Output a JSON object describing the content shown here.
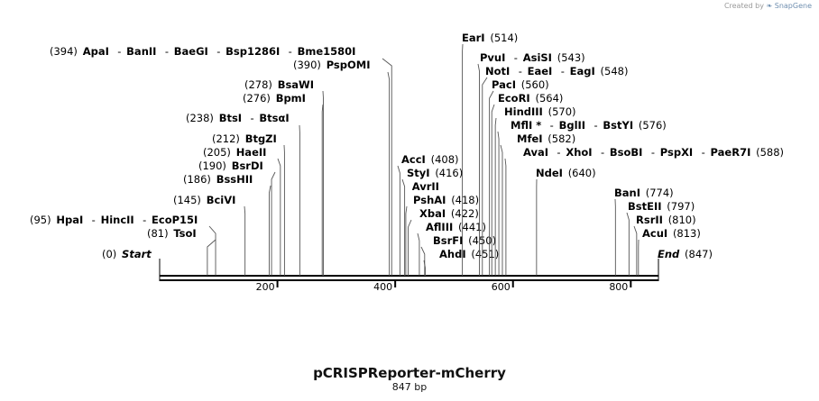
{
  "credit": {
    "prefix": "Created by",
    "brand_icon": "snapgene-swirl-icon",
    "brand": "SnapGene"
  },
  "map": {
    "title": "pCRISPReporter-mCherry",
    "length_label": "847 bp",
    "length": 847,
    "ticks": [
      "200",
      "400",
      "600",
      "800"
    ],
    "tick_positions": [
      200,
      400,
      600,
      800
    ],
    "line_color": "#000000",
    "text_color": "#000000"
  },
  "labels": [
    {
      "pos": "(394)",
      "names": [
        "ApaI",
        "BanII",
        "BaeGI",
        "Bsp1286I",
        "Bme1580I"
      ]
    },
    {
      "pos": "(390)",
      "names": [
        "PspOMI"
      ]
    },
    {
      "pos": "(278)",
      "names": [
        "BsaWI"
      ]
    },
    {
      "pos": "(276)",
      "names": [
        "BpmI"
      ]
    },
    {
      "pos": "(238)",
      "names": [
        "BtsI",
        "BtsαI"
      ]
    },
    {
      "pos": "(212)",
      "names": [
        "BtgZI"
      ]
    },
    {
      "pos": "(205)",
      "names": [
        "HaeII"
      ]
    },
    {
      "pos": "(190)",
      "names": [
        "BsrDI"
      ]
    },
    {
      "pos": "(186)",
      "names": [
        "BssHII"
      ]
    },
    {
      "pos": "(145)",
      "names": [
        "BciVI"
      ]
    },
    {
      "pos": "(95)",
      "names": [
        "HpaI",
        "HincII",
        "EcoP15I"
      ]
    },
    {
      "pos": "(81)",
      "names": [
        "TsoI"
      ]
    },
    {
      "pos": "(0)",
      "names": [
        "Start"
      ]
    },
    {
      "pos": "(514)",
      "names": [
        "EarI"
      ]
    },
    {
      "pos": "(543)",
      "names": [
        "PvuI",
        "AsiSI"
      ]
    },
    {
      "pos": "(548)",
      "names": [
        "NotI",
        "EaeI",
        "EagI"
      ]
    },
    {
      "pos": "(560)",
      "names": [
        "PacI"
      ]
    },
    {
      "pos": "(564)",
      "names": [
        "EcoRI"
      ]
    },
    {
      "pos": "(570)",
      "names": [
        "HindIII"
      ]
    },
    {
      "pos": "(576)",
      "names": [
        "MflI *",
        "BglII",
        "BstYI"
      ]
    },
    {
      "pos": "(582)",
      "names": [
        "MfeI"
      ]
    },
    {
      "pos": "(588)",
      "names": [
        "AvaI",
        "XhoI",
        "BsoBI",
        "PspXI",
        "PaeR7I"
      ]
    },
    {
      "pos": "(640)",
      "names": [
        "NdeI"
      ]
    },
    {
      "pos": "(408)",
      "names": [
        "AccI"
      ]
    },
    {
      "pos": "(416)",
      "names": [
        "StyI"
      ]
    },
    {
      "pos": "",
      "names": [
        "AvrII"
      ]
    },
    {
      "pos": "(418)",
      "names": [
        "PshAI"
      ]
    },
    {
      "pos": "(422)",
      "names": [
        "XbaI"
      ]
    },
    {
      "pos": "(441)",
      "names": [
        "AflIII"
      ]
    },
    {
      "pos": "(450)",
      "names": [
        "BsrFI"
      ]
    },
    {
      "pos": "(451)",
      "names": [
        "AhdI"
      ]
    },
    {
      "pos": "(774)",
      "names": [
        "BanI"
      ]
    },
    {
      "pos": "(797)",
      "names": [
        "BstEII"
      ]
    },
    {
      "pos": "(810)",
      "names": [
        "RsrII"
      ]
    },
    {
      "pos": "(813)",
      "names": [
        "AcuI"
      ]
    },
    {
      "pos": "(847)",
      "names": [
        "End"
      ]
    }
  ],
  "sites": [
    {
      "bp": 81,
      "label": 11
    },
    {
      "bp": 95,
      "label": 10
    },
    {
      "bp": 145,
      "label": 9
    },
    {
      "bp": 186,
      "label": 8
    },
    {
      "bp": 190,
      "label": 7
    },
    {
      "bp": 205,
      "label": 6
    },
    {
      "bp": 212,
      "label": 5
    },
    {
      "bp": 238,
      "label": 4
    },
    {
      "bp": 276,
      "label": 3
    },
    {
      "bp": 278,
      "label": 2
    },
    {
      "bp": 390,
      "label": 1
    },
    {
      "bp": 394,
      "label": 0
    },
    {
      "bp": 408,
      "label": 23
    },
    {
      "bp": 416,
      "label": 24
    },
    {
      "bp": 418,
      "label": 26
    },
    {
      "bp": 422,
      "label": 27
    },
    {
      "bp": 441,
      "label": 28
    },
    {
      "bp": 450,
      "label": 29
    },
    {
      "bp": 451,
      "label": 30
    },
    {
      "bp": 514,
      "label": 13
    },
    {
      "bp": 543,
      "label": 14
    },
    {
      "bp": 548,
      "label": 15
    },
    {
      "bp": 560,
      "label": 16
    },
    {
      "bp": 564,
      "label": 17
    },
    {
      "bp": 570,
      "label": 18
    },
    {
      "bp": 576,
      "label": 19
    },
    {
      "bp": 582,
      "label": 20
    },
    {
      "bp": 588,
      "label": 21
    },
    {
      "bp": 640,
      "label": 22
    },
    {
      "bp": 774,
      "label": 31
    },
    {
      "bp": 797,
      "label": 32
    },
    {
      "bp": 810,
      "label": 33
    },
    {
      "bp": 813,
      "label": 34
    }
  ]
}
